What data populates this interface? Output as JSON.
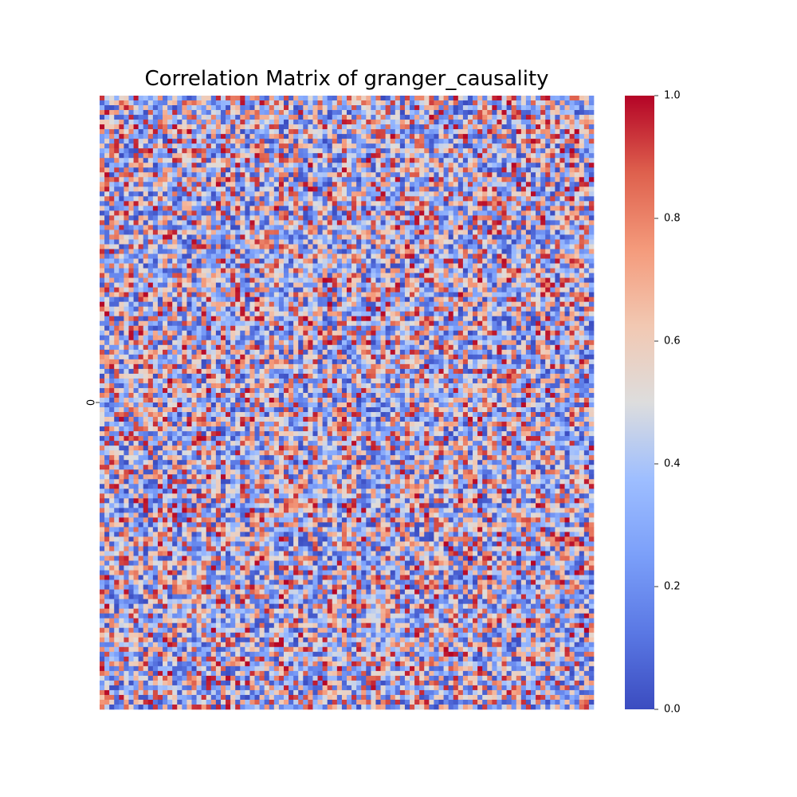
{
  "chart_data": {
    "type": "heatmap",
    "title": "Correlation Matrix of granger_causality",
    "colormap": "coolwarm",
    "grid_rows": 128,
    "grid_cols": 102,
    "value_range": [
      0.0,
      1.0
    ],
    "y_tick_labels": [
      "0"
    ],
    "x_tick_labels": [],
    "colorbar": {
      "ticks": [
        0.0,
        0.2,
        0.4,
        0.6,
        0.8,
        1.0
      ],
      "tick_labels": [
        "0.0",
        "0.2",
        "0.4",
        "0.6",
        "0.8",
        "1.0"
      ],
      "colors": {
        "low": "#3b4cc0",
        "mid": "#dddddd",
        "high": "#b40426"
      }
    },
    "grid": false,
    "legend": "colorbar-right"
  }
}
